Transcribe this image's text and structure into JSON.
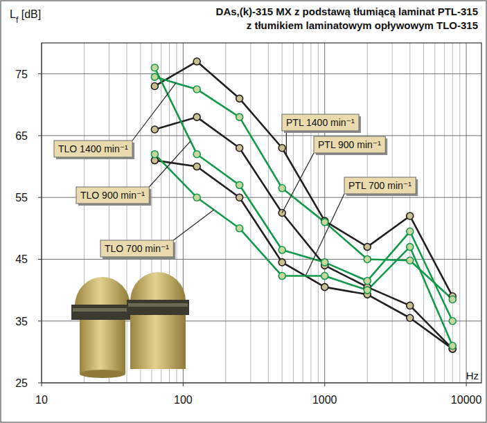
{
  "chart_data": {
    "type": "line",
    "title": [
      "DAs,(k)-315 MX z podstawą tłumiącą laminat PTL-315",
      "z tłumikiem laminatowym opływowym TLO-315"
    ],
    "ylabel": "Lf [dB]",
    "xlabel": "Hz",
    "x": [
      63,
      125,
      250,
      500,
      1000,
      2000,
      4000,
      8000
    ],
    "series": [
      {
        "name": "PTL 1400 min⁻¹",
        "color": "#231f20",
        "values": [
          73,
          77,
          71,
          63,
          51.2,
          47,
          52,
          39
        ]
      },
      {
        "name": "PTL 900 min⁻¹",
        "color": "#231f20",
        "values": [
          66,
          68,
          63,
          52.5,
          44,
          40.5,
          37.5,
          30.5
        ]
      },
      {
        "name": "PTL 700 min⁻¹",
        "color": "#231f20",
        "values": [
          61,
          60,
          55,
          44.5,
          40.5,
          39.3,
          35.5,
          30.5
        ]
      },
      {
        "name": "TLO 1400 min⁻¹",
        "color": "#13994a",
        "values": [
          74.5,
          72.5,
          68,
          56.5,
          51,
          45,
          44.8,
          38.5
        ]
      },
      {
        "name": "TLO 900 min⁻¹",
        "color": "#13994a",
        "values": [
          76,
          62,
          57,
          46.5,
          44.5,
          41.5,
          49.5,
          35
        ]
      },
      {
        "name": "TLO 700 min⁻¹",
        "color": "#13994a",
        "values": [
          62,
          55,
          50,
          42.3,
          42.3,
          40,
          47,
          31
        ]
      }
    ],
    "xlim": [
      10,
      12800
    ],
    "ylim": [
      25,
      80
    ],
    "xticks": [
      10,
      100,
      1000,
      10000
    ],
    "yticks": [
      25,
      35,
      45,
      55,
      65,
      75
    ],
    "log": "x",
    "grid": true,
    "marker": "circle",
    "line_style": "solid"
  }
}
